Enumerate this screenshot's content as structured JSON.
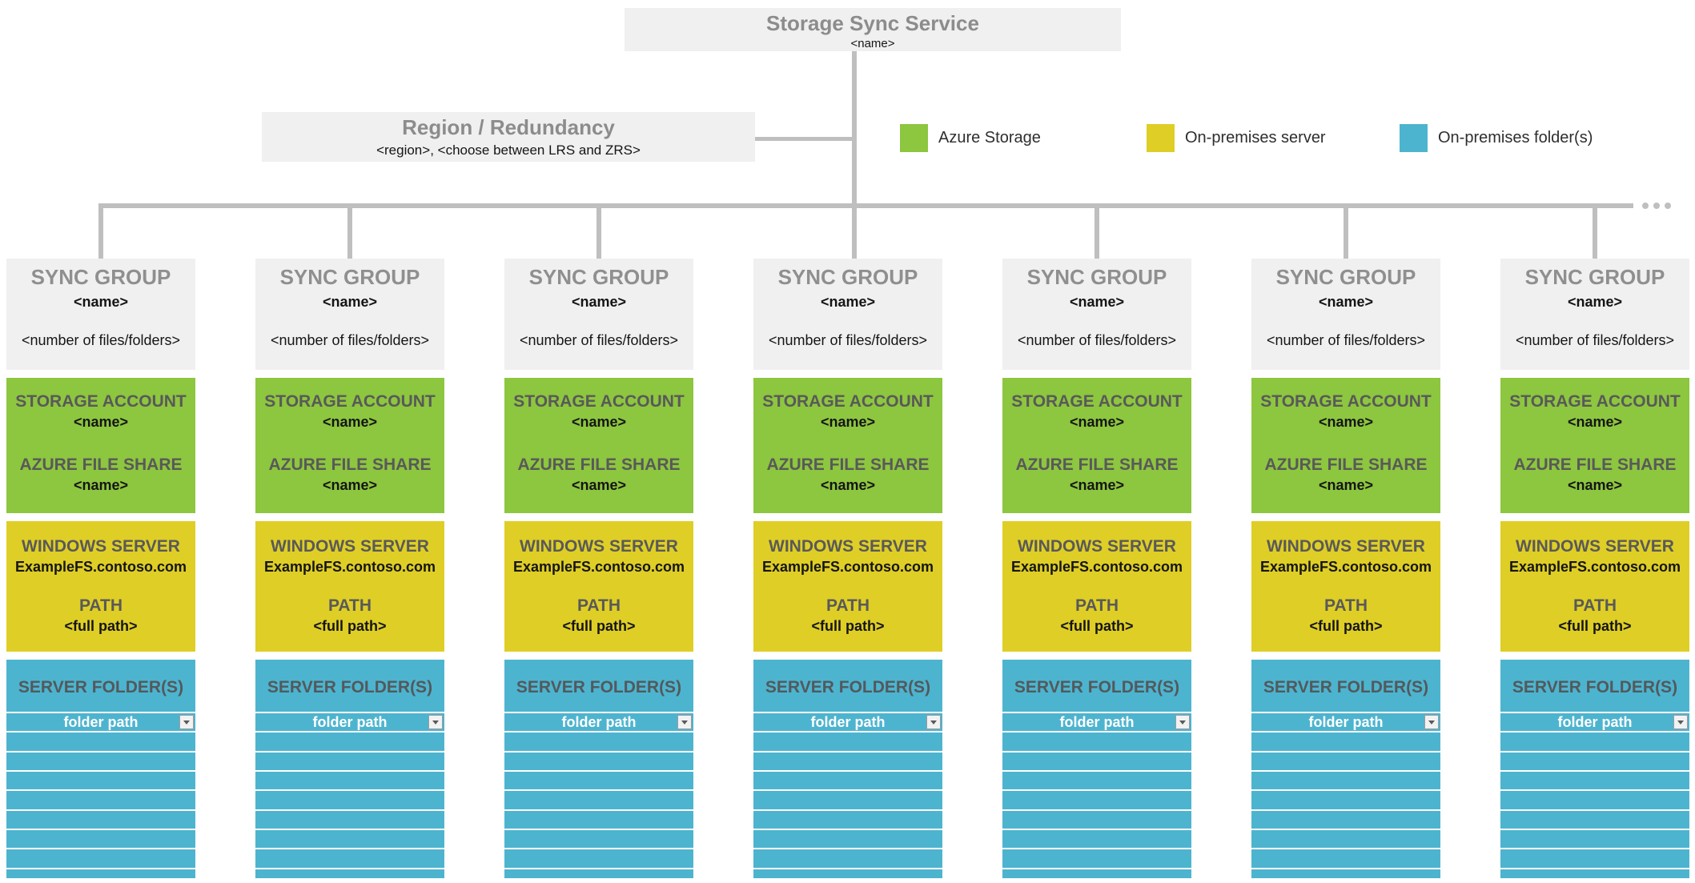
{
  "root_box": {
    "title": "Storage Sync Service",
    "name": "<name>"
  },
  "region_box": {
    "title": "Region / Redundancy",
    "subtitle": "<region>, <choose between LRS and ZRS>"
  },
  "legend": [
    {
      "label": "Azure Storage",
      "color": "#8DC63F"
    },
    {
      "label": "On-premises server",
      "color": "#DFCE26"
    },
    {
      "label": "On-premises folder(s)",
      "color": "#4DB4CF"
    }
  ],
  "more_indicator_icon": "ellipsis-dots",
  "colors": {
    "azure_green": "#8DC63F",
    "server_yellow": "#DFCE26",
    "folder_teal": "#4DB4CF",
    "panel_gray": "#F0F0F0",
    "connector_gray": "#BFBFBF"
  },
  "columns": [
    {
      "group_label": "SYNC GROUP",
      "group_name": "<name>",
      "group_count": "<number of files/folders>",
      "storage_account_label": "STORAGE ACCOUNT",
      "storage_account_name": "<name>",
      "file_share_label": "AZURE FILE SHARE",
      "file_share_name": "<name>",
      "server_label": "WINDOWS SERVER",
      "server_name": "ExampleFS.contoso.com",
      "path_label": "PATH",
      "path_value": "<full path>",
      "folders_label": "SERVER FOLDER(S)",
      "folder_path_label": "folder path",
      "dropdown_icon": "chevron-down-icon",
      "empty_rows": 8
    },
    {
      "group_label": "SYNC GROUP",
      "group_name": "<name>",
      "group_count": "<number of files/folders>",
      "storage_account_label": "STORAGE ACCOUNT",
      "storage_account_name": "<name>",
      "file_share_label": "AZURE FILE SHARE",
      "file_share_name": "<name>",
      "server_label": "WINDOWS SERVER",
      "server_name": "ExampleFS.contoso.com",
      "path_label": "PATH",
      "path_value": "<full path>",
      "folders_label": "SERVER FOLDER(S)",
      "folder_path_label": "folder path",
      "dropdown_icon": "chevron-down-icon",
      "empty_rows": 8
    },
    {
      "group_label": "SYNC GROUP",
      "group_name": "<name>",
      "group_count": "<number of files/folders>",
      "storage_account_label": "STORAGE ACCOUNT",
      "storage_account_name": "<name>",
      "file_share_label": "AZURE FILE SHARE",
      "file_share_name": "<name>",
      "server_label": "WINDOWS SERVER",
      "server_name": "ExampleFS.contoso.com",
      "path_label": "PATH",
      "path_value": "<full path>",
      "folders_label": "SERVER FOLDER(S)",
      "folder_path_label": "folder path",
      "dropdown_icon": "chevron-down-icon",
      "empty_rows": 8
    },
    {
      "group_label": "SYNC GROUP",
      "group_name": "<name>",
      "group_count": "<number of files/folders>",
      "storage_account_label": "STORAGE ACCOUNT",
      "storage_account_name": "<name>",
      "file_share_label": "AZURE FILE SHARE",
      "file_share_name": "<name>",
      "server_label": "WINDOWS SERVER",
      "server_name": "ExampleFS.contoso.com",
      "path_label": "PATH",
      "path_value": "<full path>",
      "folders_label": "SERVER FOLDER(S)",
      "folder_path_label": "folder path",
      "dropdown_icon": "chevron-down-icon",
      "empty_rows": 8
    },
    {
      "group_label": "SYNC GROUP",
      "group_name": "<name>",
      "group_count": "<number of files/folders>",
      "storage_account_label": "STORAGE ACCOUNT",
      "storage_account_name": "<name>",
      "file_share_label": "AZURE FILE SHARE",
      "file_share_name": "<name>",
      "server_label": "WINDOWS SERVER",
      "server_name": "ExampleFS.contoso.com",
      "path_label": "PATH",
      "path_value": "<full path>",
      "folders_label": "SERVER FOLDER(S)",
      "folder_path_label": "folder path",
      "dropdown_icon": "chevron-down-icon",
      "empty_rows": 8
    },
    {
      "group_label": "SYNC GROUP",
      "group_name": "<name>",
      "group_count": "<number of files/folders>",
      "storage_account_label": "STORAGE ACCOUNT",
      "storage_account_name": "<name>",
      "file_share_label": "AZURE FILE SHARE",
      "file_share_name": "<name>",
      "server_label": "WINDOWS SERVER",
      "server_name": "ExampleFS.contoso.com",
      "path_label": "PATH",
      "path_value": "<full path>",
      "folders_label": "SERVER FOLDER(S)",
      "folder_path_label": "folder path",
      "dropdown_icon": "chevron-down-icon",
      "empty_rows": 8
    },
    {
      "group_label": "SYNC GROUP",
      "group_name": "<name>",
      "group_count": "<number of files/folders>",
      "storage_account_label": "STORAGE ACCOUNT",
      "storage_account_name": "<name>",
      "file_share_label": "AZURE FILE SHARE",
      "file_share_name": "<name>",
      "server_label": "WINDOWS SERVER",
      "server_name": "ExampleFS.contoso.com",
      "path_label": "PATH",
      "path_value": "<full path>",
      "folders_label": "SERVER FOLDER(S)",
      "folder_path_label": "folder path",
      "dropdown_icon": "chevron-down-icon",
      "empty_rows": 8
    }
  ],
  "layout_hints": {
    "column_count": 7,
    "diagram_type": "azure-file-sync-topology"
  }
}
